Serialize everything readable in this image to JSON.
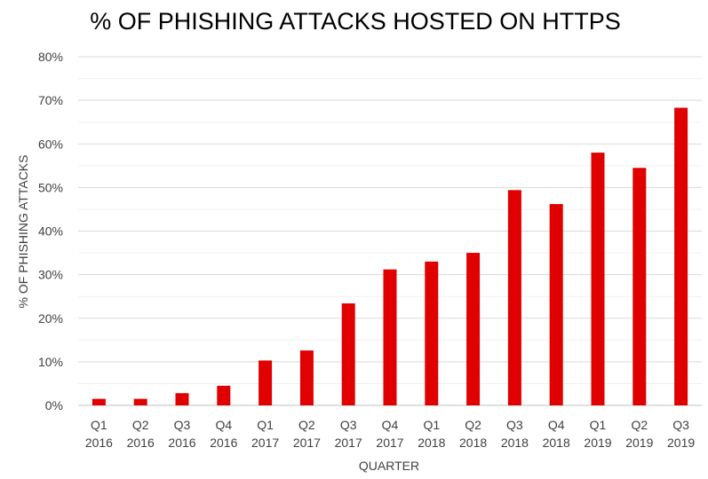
{
  "chart_data": {
    "type": "bar",
    "title": "% OF PHISHING ATTACKS HOSTED ON HTTPS",
    "xlabel": "QUARTER",
    "ylabel": "% OF PHISHING ATTACKS",
    "categories": [
      [
        "Q1",
        "2016"
      ],
      [
        "Q2",
        "2016"
      ],
      [
        "Q3",
        "2016"
      ],
      [
        "Q4",
        "2016"
      ],
      [
        "Q1",
        "2017"
      ],
      [
        "Q2",
        "2017"
      ],
      [
        "Q3",
        "2017"
      ],
      [
        "Q4",
        "2017"
      ],
      [
        "Q1",
        "2018"
      ],
      [
        "Q2",
        "2018"
      ],
      [
        "Q3",
        "2018"
      ],
      [
        "Q4",
        "2018"
      ],
      [
        "Q1",
        "2019"
      ],
      [
        "Q2",
        "2019"
      ],
      [
        "Q3",
        "2019"
      ]
    ],
    "values": [
      1.5,
      1.5,
      2.8,
      4.5,
      10.3,
      12.6,
      23.4,
      31.2,
      33.0,
      35.0,
      49.4,
      46.2,
      58.0,
      54.5,
      68.3
    ],
    "ylim": [
      0,
      80
    ],
    "yticks": [
      0,
      10,
      20,
      30,
      40,
      50,
      60,
      70,
      80
    ],
    "ytick_suffix": "%",
    "bar_color": "#e00000",
    "gridline_color": "#d9d9d9",
    "minor_gridline_color": "#f0f0f0",
    "grid": true,
    "legend": "none"
  }
}
